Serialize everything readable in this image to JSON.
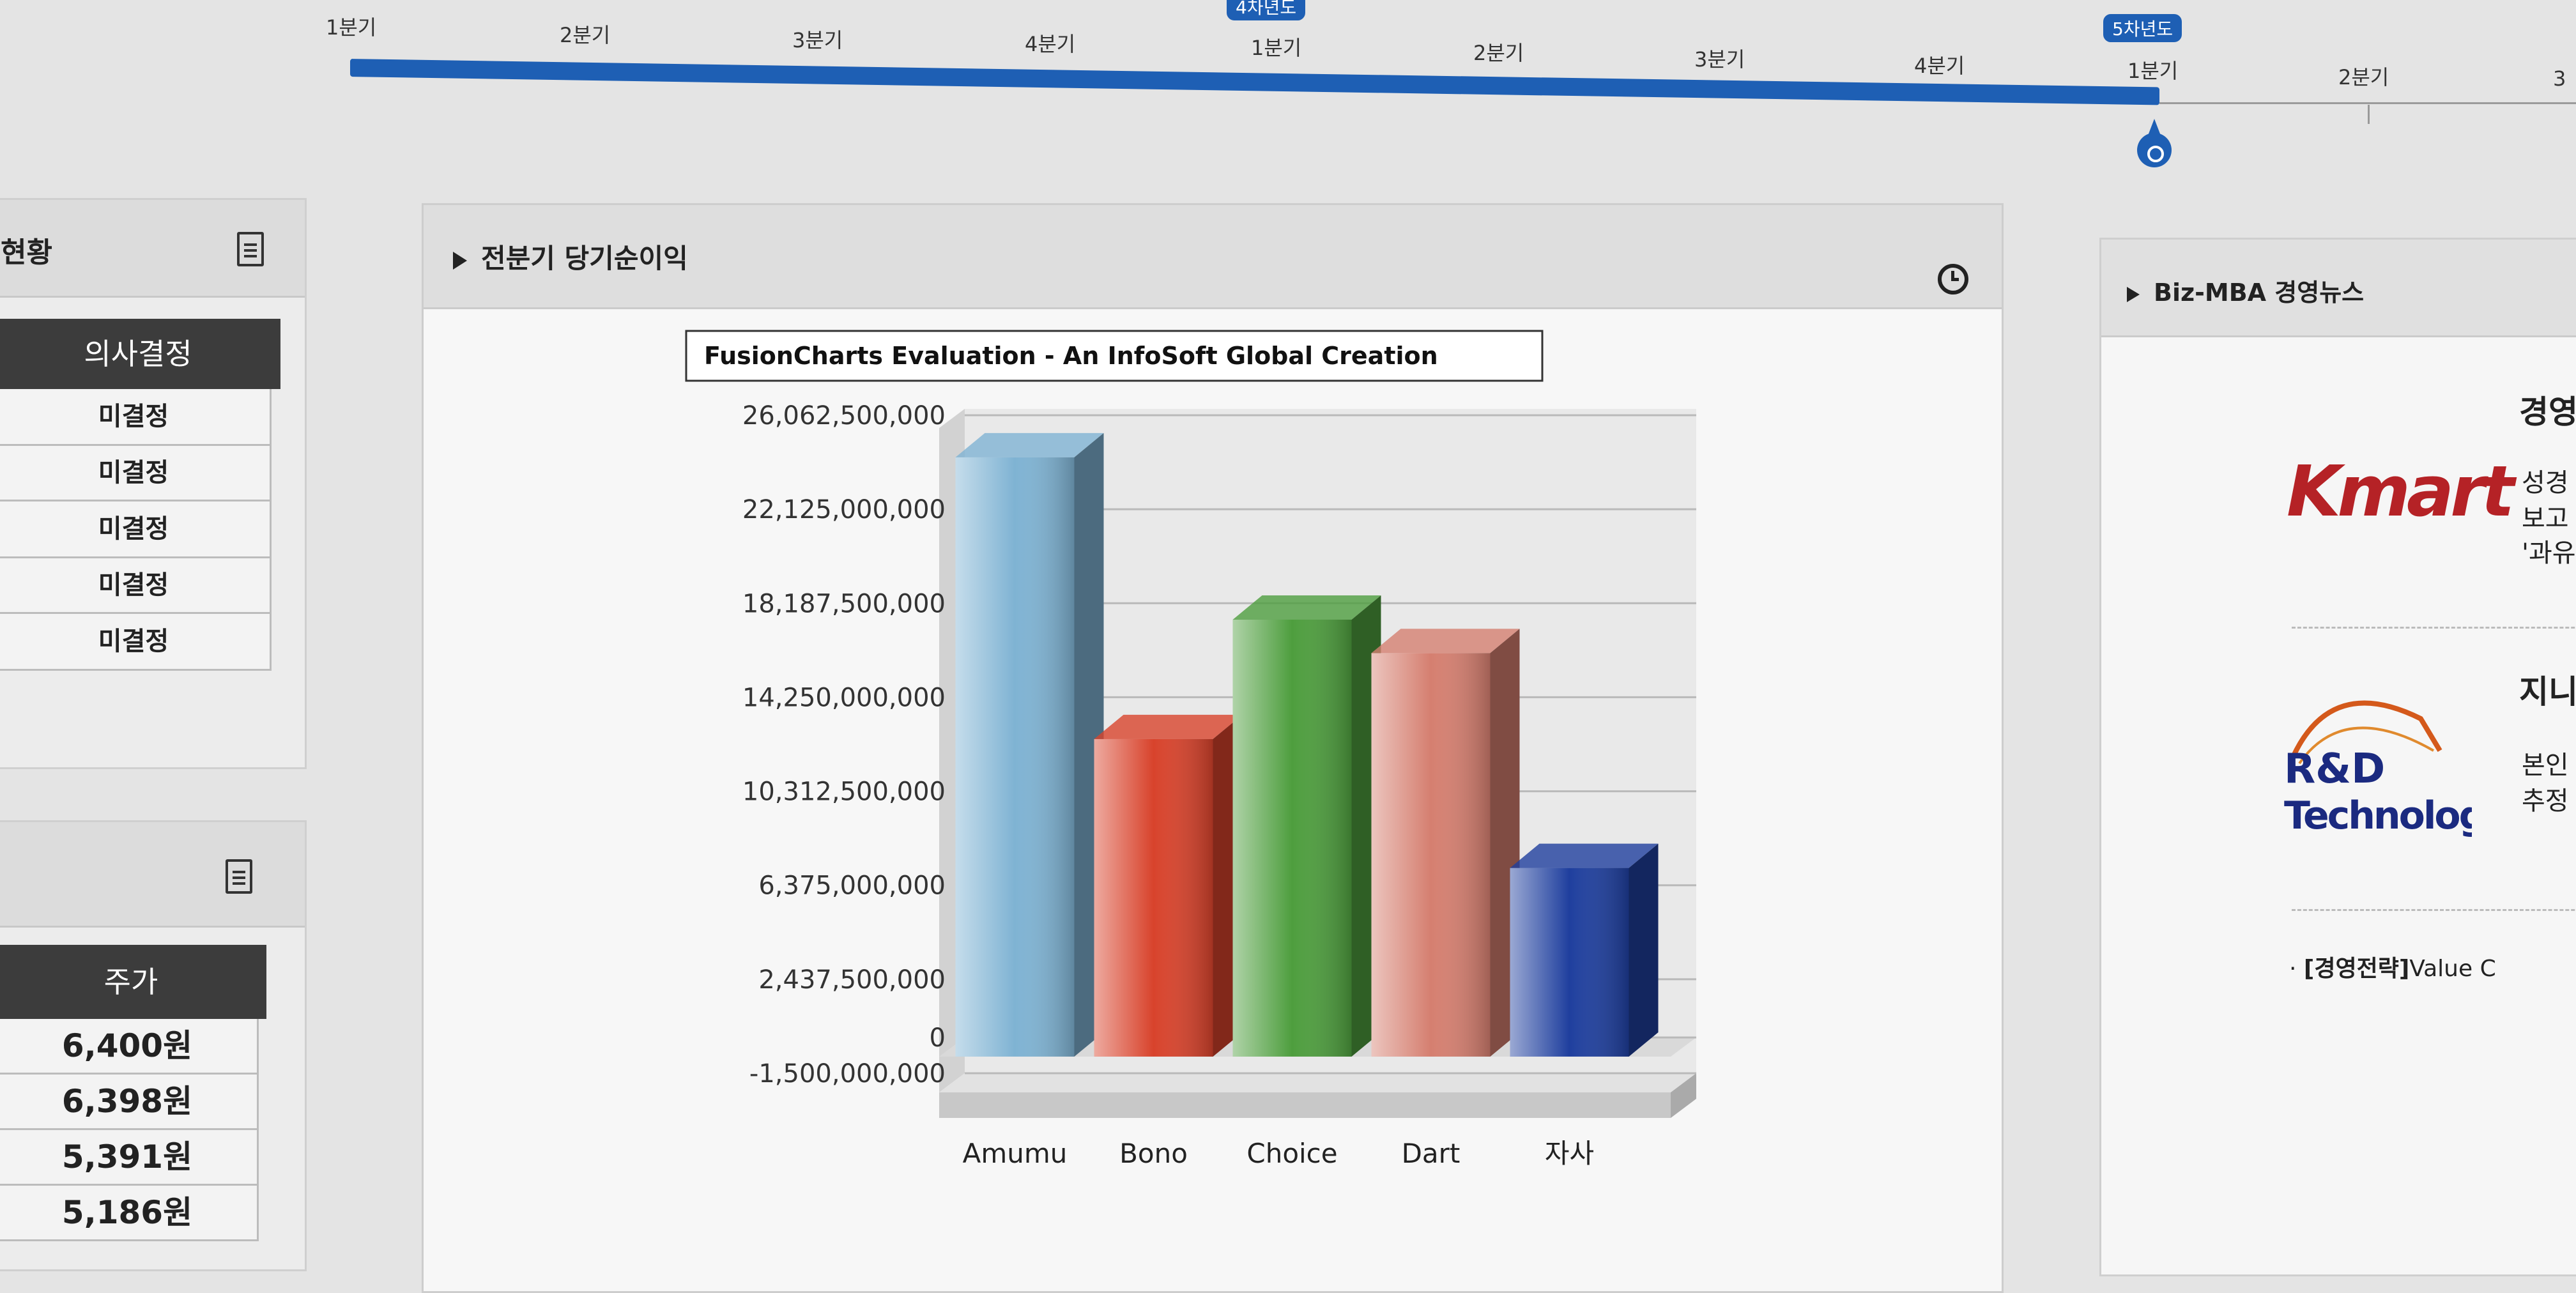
{
  "timeline": {
    "labels": [
      "1분기",
      "2분기",
      "3분기",
      "4분기",
      "1분기",
      "2분기",
      "3분기",
      "4분기",
      "1분기",
      "2분기",
      "3"
    ],
    "badges": [
      "4차년도",
      "5차년도"
    ]
  },
  "left_panel_1": {
    "title": "현황",
    "table_header": "의사결정",
    "rows": [
      "미결정",
      "미결정",
      "미결정",
      "미결정",
      "미결정"
    ]
  },
  "left_panel_2": {
    "table_header": "주가",
    "rows": [
      "6,400원",
      "6,398원",
      "5,391원",
      "5,186원"
    ]
  },
  "chart_panel": {
    "title": "전분기 당기순이익",
    "watermark": "FusionCharts Evaluation - An InfoSoft Global Creation"
  },
  "chart_data": {
    "type": "bar",
    "title": "",
    "categories": [
      "Amumu",
      "Bono",
      "Choice",
      "Dart",
      "자사"
    ],
    "values": [
      24300000000,
      12500000000,
      17500000000,
      16100000000,
      7100000000
    ],
    "colors": [
      "#7fb3d3",
      "#d8432c",
      "#4e9e3e",
      "#d57f70",
      "#1f3f9e"
    ],
    "ylim": [
      -1500000000,
      26062500000
    ],
    "yticks": [
      26062500000,
      22125000000,
      18187500000,
      14250000000,
      10312500000,
      6375000000,
      2437500000,
      0,
      -1500000000
    ],
    "ytick_labels": [
      "26,062,500,000",
      "22,125,000,000",
      "18,187,500,000",
      "14,250,000,000",
      "10,312,500,000",
      "6,375,000,000",
      "2,437,500,000",
      "0",
      "-1,500,000,000"
    ],
    "grid": true,
    "legend": "none"
  },
  "news_panel": {
    "title": "Biz-MBA 경영뉴스",
    "items": [
      {
        "logo": "Kmart",
        "headline": "경영",
        "snippet": [
          "성경",
          "보고",
          "'과유"
        ]
      },
      {
        "logo_line1": "R&D",
        "logo_line2": "Technology",
        "headline": "지니",
        "snippet": [
          "본인",
          "추정"
        ]
      }
    ],
    "footer_tag": "[경영전략]",
    "footer_text": "Value C"
  }
}
